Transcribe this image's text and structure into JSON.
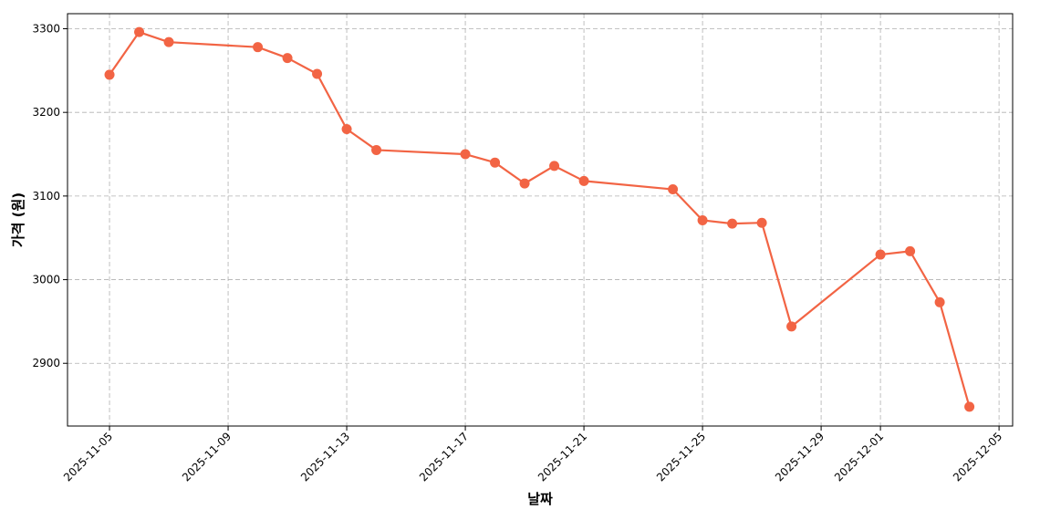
{
  "chart_data": {
    "type": "line",
    "title": "",
    "xlabel": "날짜",
    "ylabel": "가격 (원)",
    "x_ticks": [
      "2025-11-05",
      "2025-11-09",
      "2025-11-13",
      "2025-11-17",
      "2025-11-21",
      "2025-11-25",
      "2025-11-29",
      "2025-12-01",
      "2025-12-05"
    ],
    "y_ticks": [
      2900,
      3000,
      3100,
      3200,
      3300
    ],
    "xlim": [
      "2025-11-03T14:00",
      "2025-12-05T11:00"
    ],
    "ylim": [
      2825,
      3318
    ],
    "grid": true,
    "legend": "none",
    "series": [
      {
        "color": "#f26444",
        "points": [
          {
            "x": "2025-11-05",
            "y": 3245
          },
          {
            "x": "2025-11-06",
            "y": 3296
          },
          {
            "x": "2025-11-07",
            "y": 3284
          },
          {
            "x": "2025-11-10",
            "y": 3278
          },
          {
            "x": "2025-11-11",
            "y": 3265
          },
          {
            "x": "2025-11-12",
            "y": 3246
          },
          {
            "x": "2025-11-13",
            "y": 3180
          },
          {
            "x": "2025-11-14",
            "y": 3155
          },
          {
            "x": "2025-11-17",
            "y": 3150
          },
          {
            "x": "2025-11-18",
            "y": 3140
          },
          {
            "x": "2025-11-19",
            "y": 3115
          },
          {
            "x": "2025-11-20",
            "y": 3136
          },
          {
            "x": "2025-11-21",
            "y": 3118
          },
          {
            "x": "2025-11-24",
            "y": 3108
          },
          {
            "x": "2025-11-25",
            "y": 3071
          },
          {
            "x": "2025-11-26",
            "y": 3067
          },
          {
            "x": "2025-11-27",
            "y": 3068
          },
          {
            "x": "2025-11-28",
            "y": 2944
          },
          {
            "x": "2025-12-01",
            "y": 3030
          },
          {
            "x": "2025-12-02",
            "y": 3034
          },
          {
            "x": "2025-12-03",
            "y": 2973
          },
          {
            "x": "2025-12-04",
            "y": 2848
          }
        ]
      }
    ]
  }
}
